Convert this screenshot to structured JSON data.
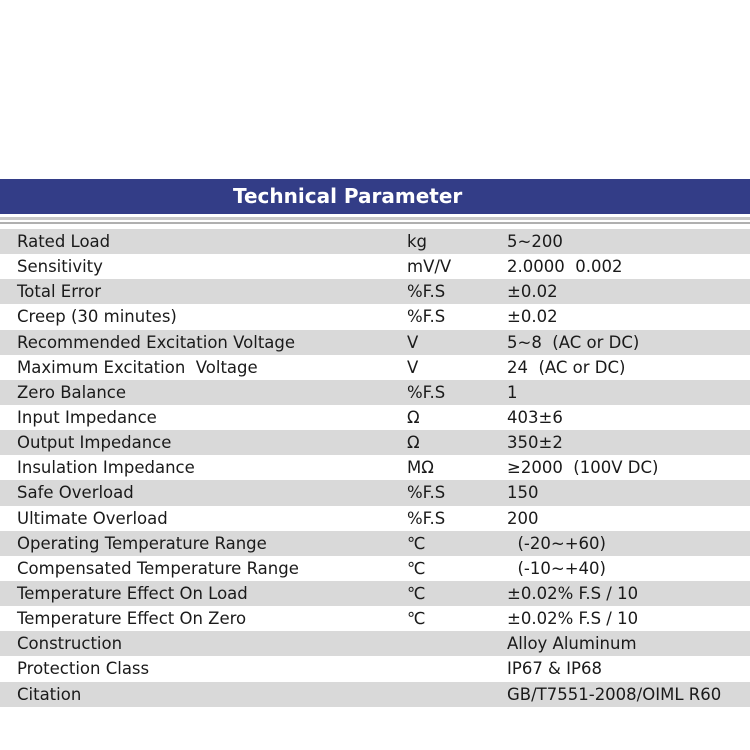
{
  "header": {
    "title": "Technical Parameter",
    "background": "#333d87"
  },
  "rows": [
    {
      "name": "Rated Load",
      "unit": "kg",
      "value": "5~200"
    },
    {
      "name": "Sensitivity",
      "unit": "mV/V",
      "value": "2.0000  0.002"
    },
    {
      "name": "Total Error",
      "unit": "%F.S",
      "value": "±0.02"
    },
    {
      "name": "Creep (30 minutes)",
      "unit": "%F.S",
      "value": "±0.02"
    },
    {
      "name": "Recommended Excitation Voltage",
      "unit": "V",
      "value": "5~8  (AC or DC)"
    },
    {
      "name": "Maximum Excitation  Voltage",
      "unit": "V",
      "value": "24  (AC or DC)"
    },
    {
      "name": "Zero Balance",
      "unit": "%F.S",
      "value": "1"
    },
    {
      "name": "Input Impedance",
      "unit": "Ω",
      "value": "403±6"
    },
    {
      "name": "Output Impedance",
      "unit": "Ω",
      "value": "350±2"
    },
    {
      "name": "Insulation Impedance",
      "unit": "MΩ",
      "value": "≥2000  (100V DC)"
    },
    {
      "name": "Safe Overload",
      "unit": "%F.S",
      "value": "150"
    },
    {
      "name": "Ultimate Overload",
      "unit": "%F.S",
      "value": "200"
    },
    {
      "name": "Operating Temperature Range",
      "unit": "℃",
      "value": "  (-20~+60)"
    },
    {
      "name": "Compensated Temperature Range",
      "unit": "℃",
      "value": "  (-10~+40)"
    },
    {
      "name": "Temperature Effect On Load",
      "unit": "℃",
      "value": "±0.02% F.S / 10"
    },
    {
      "name": "Temperature Effect On Zero",
      "unit": "℃",
      "value": "±0.02% F.S / 10"
    },
    {
      "name": "Construction",
      "unit": "",
      "value": "Alloy Aluminum"
    },
    {
      "name": "Protection Class",
      "unit": "",
      "value": "IP67 & IP68"
    },
    {
      "name": "Citation",
      "unit": "",
      "value": "GB/T7551-2008/OIML R60"
    }
  ]
}
